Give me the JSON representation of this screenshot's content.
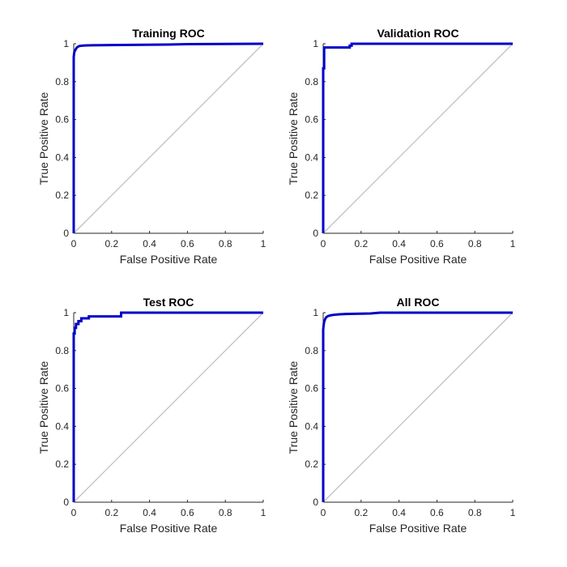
{
  "chart_data": [
    {
      "type": "line",
      "title": "Training ROC",
      "xlabel": "False Positive Rate",
      "ylabel": "True Positive Rate",
      "xlim": [
        0,
        1
      ],
      "ylim": [
        0,
        1
      ],
      "xticks": [
        "0",
        "0.2",
        "0.4",
        "0.6",
        "0.8",
        "1"
      ],
      "yticks": [
        "0",
        "0.2",
        "0.4",
        "0.6",
        "0.8",
        "1"
      ],
      "grid": false,
      "series": [
        {
          "color": "#0000c8",
          "x": [
            0,
            0,
            0.003,
            0.006,
            0.01,
            0.015,
            0.02,
            0.03,
            0.045,
            0.06,
            0.1,
            0.2,
            0.5,
            0.6,
            1.0
          ],
          "y": [
            0,
            0.93,
            0.955,
            0.962,
            0.97,
            0.978,
            0.983,
            0.988,
            0.99,
            0.991,
            0.992,
            0.993,
            0.996,
            0.998,
            1.0
          ]
        },
        {
          "color": "#c0c0c0",
          "x": [
            0,
            1
          ],
          "y": [
            0,
            1
          ]
        }
      ]
    },
    {
      "type": "line",
      "title": "Validation ROC",
      "xlabel": "False Positive Rate",
      "ylabel": "True Positive Rate",
      "xlim": [
        0,
        1
      ],
      "ylim": [
        0,
        1
      ],
      "xticks": [
        "0",
        "0.2",
        "0.4",
        "0.6",
        "0.8",
        "1"
      ],
      "yticks": [
        "0",
        "0.2",
        "0.4",
        "0.6",
        "0.8",
        "1"
      ],
      "grid": false,
      "series": [
        {
          "color": "#0000c8",
          "x": [
            0,
            0,
            0.005,
            0.005,
            0.14,
            0.14,
            0.15,
            0.15,
            1.0
          ],
          "y": [
            0,
            0.87,
            0.87,
            0.98,
            0.98,
            0.99,
            0.99,
            1.0,
            1.0
          ]
        },
        {
          "color": "#c0c0c0",
          "x": [
            0,
            1
          ],
          "y": [
            0,
            1
          ]
        }
      ]
    },
    {
      "type": "line",
      "title": "Test ROC",
      "xlabel": "False Positive Rate",
      "ylabel": "True Positive Rate",
      "xlim": [
        0,
        1
      ],
      "ylim": [
        0,
        1
      ],
      "xticks": [
        "0",
        "0.2",
        "0.4",
        "0.6",
        "0.8",
        "1"
      ],
      "yticks": [
        "0",
        "0.2",
        "0.4",
        "0.6",
        "0.8",
        "1"
      ],
      "grid": false,
      "series": [
        {
          "color": "#0000c8",
          "x": [
            0,
            0,
            0.005,
            0.005,
            0.012,
            0.012,
            0.025,
            0.025,
            0.04,
            0.04,
            0.08,
            0.08,
            0.25,
            0.25,
            1.0
          ],
          "y": [
            0,
            0.89,
            0.89,
            0.92,
            0.92,
            0.94,
            0.94,
            0.955,
            0.955,
            0.97,
            0.97,
            0.98,
            0.98,
            1.0,
            1.0
          ]
        },
        {
          "color": "#c0c0c0",
          "x": [
            0,
            1
          ],
          "y": [
            0,
            1
          ]
        }
      ]
    },
    {
      "type": "line",
      "title": "All ROC",
      "xlabel": "False Positive Rate",
      "ylabel": "True Positive Rate",
      "xlim": [
        0,
        1
      ],
      "ylim": [
        0,
        1
      ],
      "xticks": [
        "0",
        "0.2",
        "0.4",
        "0.6",
        "0.8",
        "1"
      ],
      "yticks": [
        "0",
        "0.2",
        "0.4",
        "0.6",
        "0.8",
        "1"
      ],
      "grid": false,
      "series": [
        {
          "color": "#0000c8",
          "x": [
            0,
            0,
            0.003,
            0.006,
            0.01,
            0.015,
            0.025,
            0.04,
            0.06,
            0.08,
            0.12,
            0.25,
            0.3,
            1.0
          ],
          "y": [
            0,
            0.91,
            0.94,
            0.955,
            0.965,
            0.975,
            0.982,
            0.986,
            0.989,
            0.991,
            0.993,
            0.996,
            1.0,
            1.0
          ]
        },
        {
          "color": "#c0c0c0",
          "x": [
            0,
            1
          ],
          "y": [
            0,
            1
          ]
        }
      ]
    }
  ]
}
